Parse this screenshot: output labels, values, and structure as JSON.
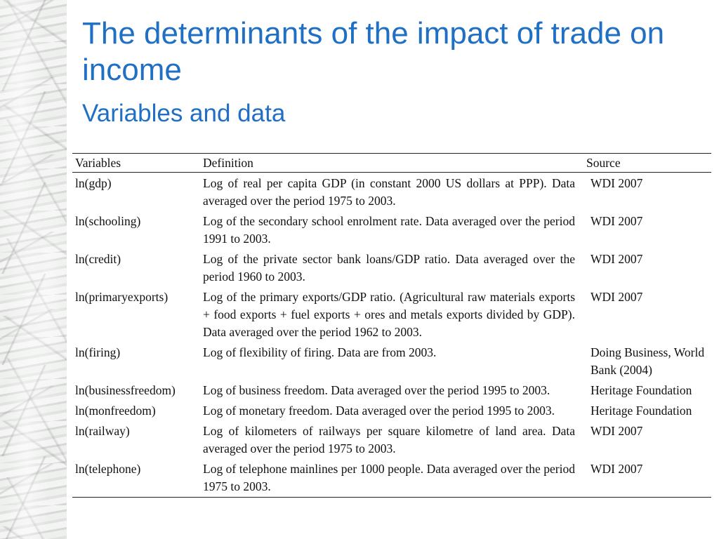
{
  "slide": {
    "title": "The determinants of the impact of trade on income",
    "subtitle": "Variables and data"
  },
  "table": {
    "headers": [
      "Variables",
      "Definition",
      "Source"
    ],
    "rows": [
      {
        "variable": "ln(gdp)",
        "definition": "Log of real per capita GDP (in constant 2000 US dollars at PPP). Data averaged over the period 1975 to 2003.",
        "source": "WDI 2007"
      },
      {
        "variable": "ln(schooling)",
        "definition": "Log of the secondary school enrolment rate. Data averaged over the period 1991 to 2003.",
        "source": "WDI 2007"
      },
      {
        "variable": "ln(credit)",
        "definition": "Log of the private sector bank loans/GDP ratio. Data averaged over the period 1960 to 2003.",
        "source": "WDI 2007"
      },
      {
        "variable": "ln(primaryexports)",
        "definition": "Log of the primary exports/GDP ratio. (Agricultural raw materials exports + food exports + fuel exports + ores and metals exports divided by GDP). Data averaged over the period 1962 to 2003.",
        "source": "WDI 2007"
      },
      {
        "variable": "ln(firing)",
        "definition": "Log of flexibility of firing. Data are from 2003.",
        "source": "Doing Business, World Bank (2004)"
      },
      {
        "variable": "ln(businessfreedom)",
        "definition": "Log of business freedom. Data averaged over the period 1995 to 2003.",
        "source": "Heritage Foundation"
      },
      {
        "variable": "ln(monfreedom)",
        "definition": "Log of monetary freedom. Data averaged over the period 1995 to 2003.",
        "source": "Heritage Foundation"
      },
      {
        "variable": "ln(railway)",
        "definition": "Log of kilometers of railways per square kilometre of land area. Data averaged over the period 1975 to 2003.",
        "source": "WDI 2007"
      },
      {
        "variable": "ln(telephone)",
        "definition": "Log of telephone mainlines per 1000 people. Data averaged over the period 1975 to 2003.",
        "source": "WDI 2007"
      }
    ]
  }
}
